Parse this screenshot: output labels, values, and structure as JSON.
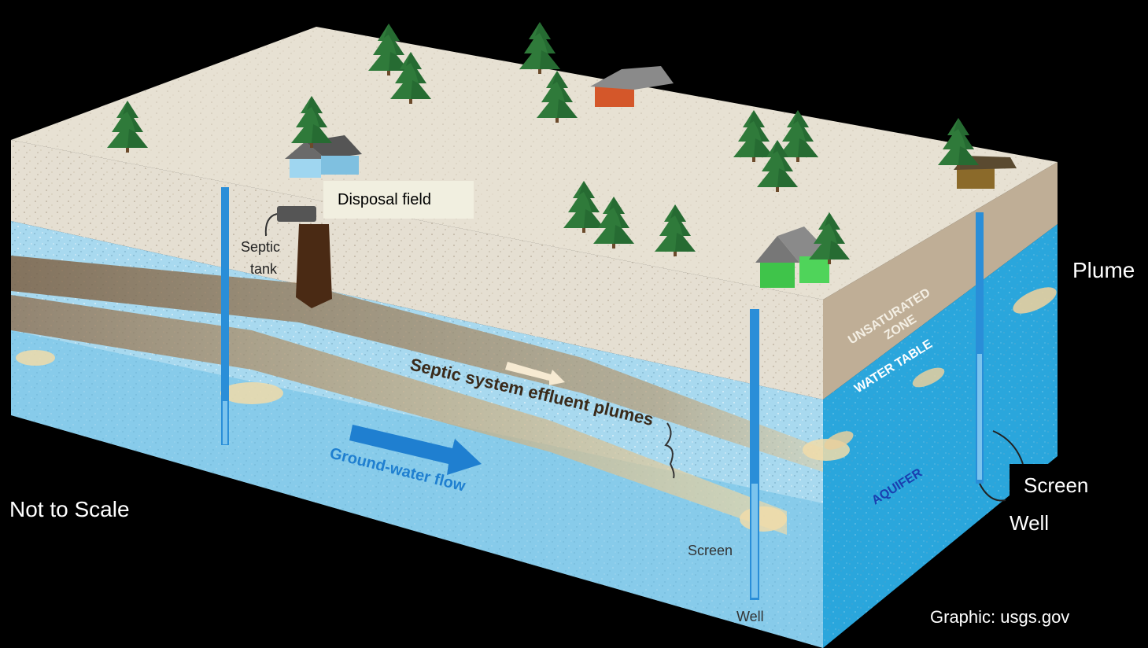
{
  "diagram": {
    "disposal_field_label": "Disposal field",
    "septic_tank_label_line1": "Septic",
    "septic_tank_label_line2": "tank",
    "plumes_label": "Septic system effluent plumes",
    "flow_label": "Ground-water flow",
    "unsaturated_line1": "UNSATURATED",
    "unsaturated_line2": "ZONE",
    "water_table_label": "WATER TABLE",
    "aquifer_label": "AQUIFER",
    "screen_front_label": "Screen",
    "well_front_label": "Well",
    "plume_right_label": "Plume",
    "screen_right_label": "Screen",
    "well_right_label": "Well",
    "not_to_scale_label": "Not to Scale",
    "credit_label": "Graphic: usgs.gov"
  },
  "colors": {
    "background": "#000000",
    "surface": "#e7e1d3",
    "soil": "#bfae96",
    "water": "#9fd5ec",
    "water_dark": "#2aa6dc",
    "plume": "#8b6a4a",
    "tree": "#2f7a3a",
    "well": "#2a8ed8",
    "flow_arrow": "#1f7fd0",
    "aquifer_text": "#1a3fb0"
  },
  "icons": {
    "trees": "pine-tree-icon",
    "houses": "house-icon"
  }
}
